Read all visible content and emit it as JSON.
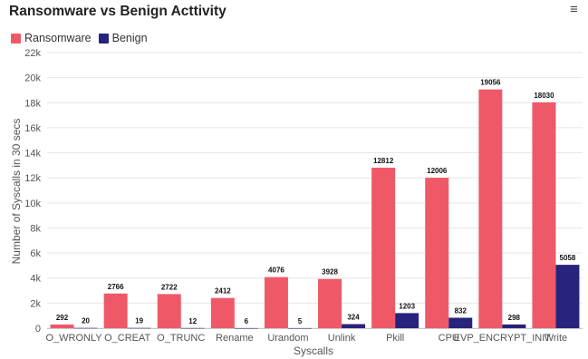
{
  "header": {
    "title": "Ransomware vs Benign Acttivity",
    "menu_icon": "hamburger-menu-icon",
    "menu_glyph": "≡"
  },
  "colors": {
    "ransomware": "#ef5967",
    "benign": "#28237c",
    "grid": "#e6e6e6"
  },
  "chart_data": {
    "type": "bar",
    "title": "Ransomware vs Benign Acttivity",
    "xlabel": "Syscalls",
    "ylabel": "Number of Syscalls in 30 secs",
    "ylim": [
      0,
      22000
    ],
    "yticks": [
      "0",
      "2k",
      "4k",
      "6k",
      "8k",
      "10k",
      "12k",
      "14k",
      "16k",
      "18k",
      "20k",
      "22k"
    ],
    "grid": true,
    "legend": "top-left",
    "categories": [
      "O_WRONLY",
      "O_CREAT",
      "O_TRUNC",
      "Rename",
      "Urandom",
      "Unlink",
      "Pkill",
      "CPU",
      "EVP_ENCRYPT_INIT",
      "Write"
    ],
    "series": [
      {
        "name": "Ransomware",
        "values": [
          292,
          2766,
          2722,
          2412,
          4076,
          3928,
          12812,
          12006,
          19056,
          18030
        ]
      },
      {
        "name": "Benign",
        "values": [
          20,
          19,
          12,
          6,
          5,
          324,
          1203,
          832,
          298,
          5058
        ]
      }
    ]
  }
}
